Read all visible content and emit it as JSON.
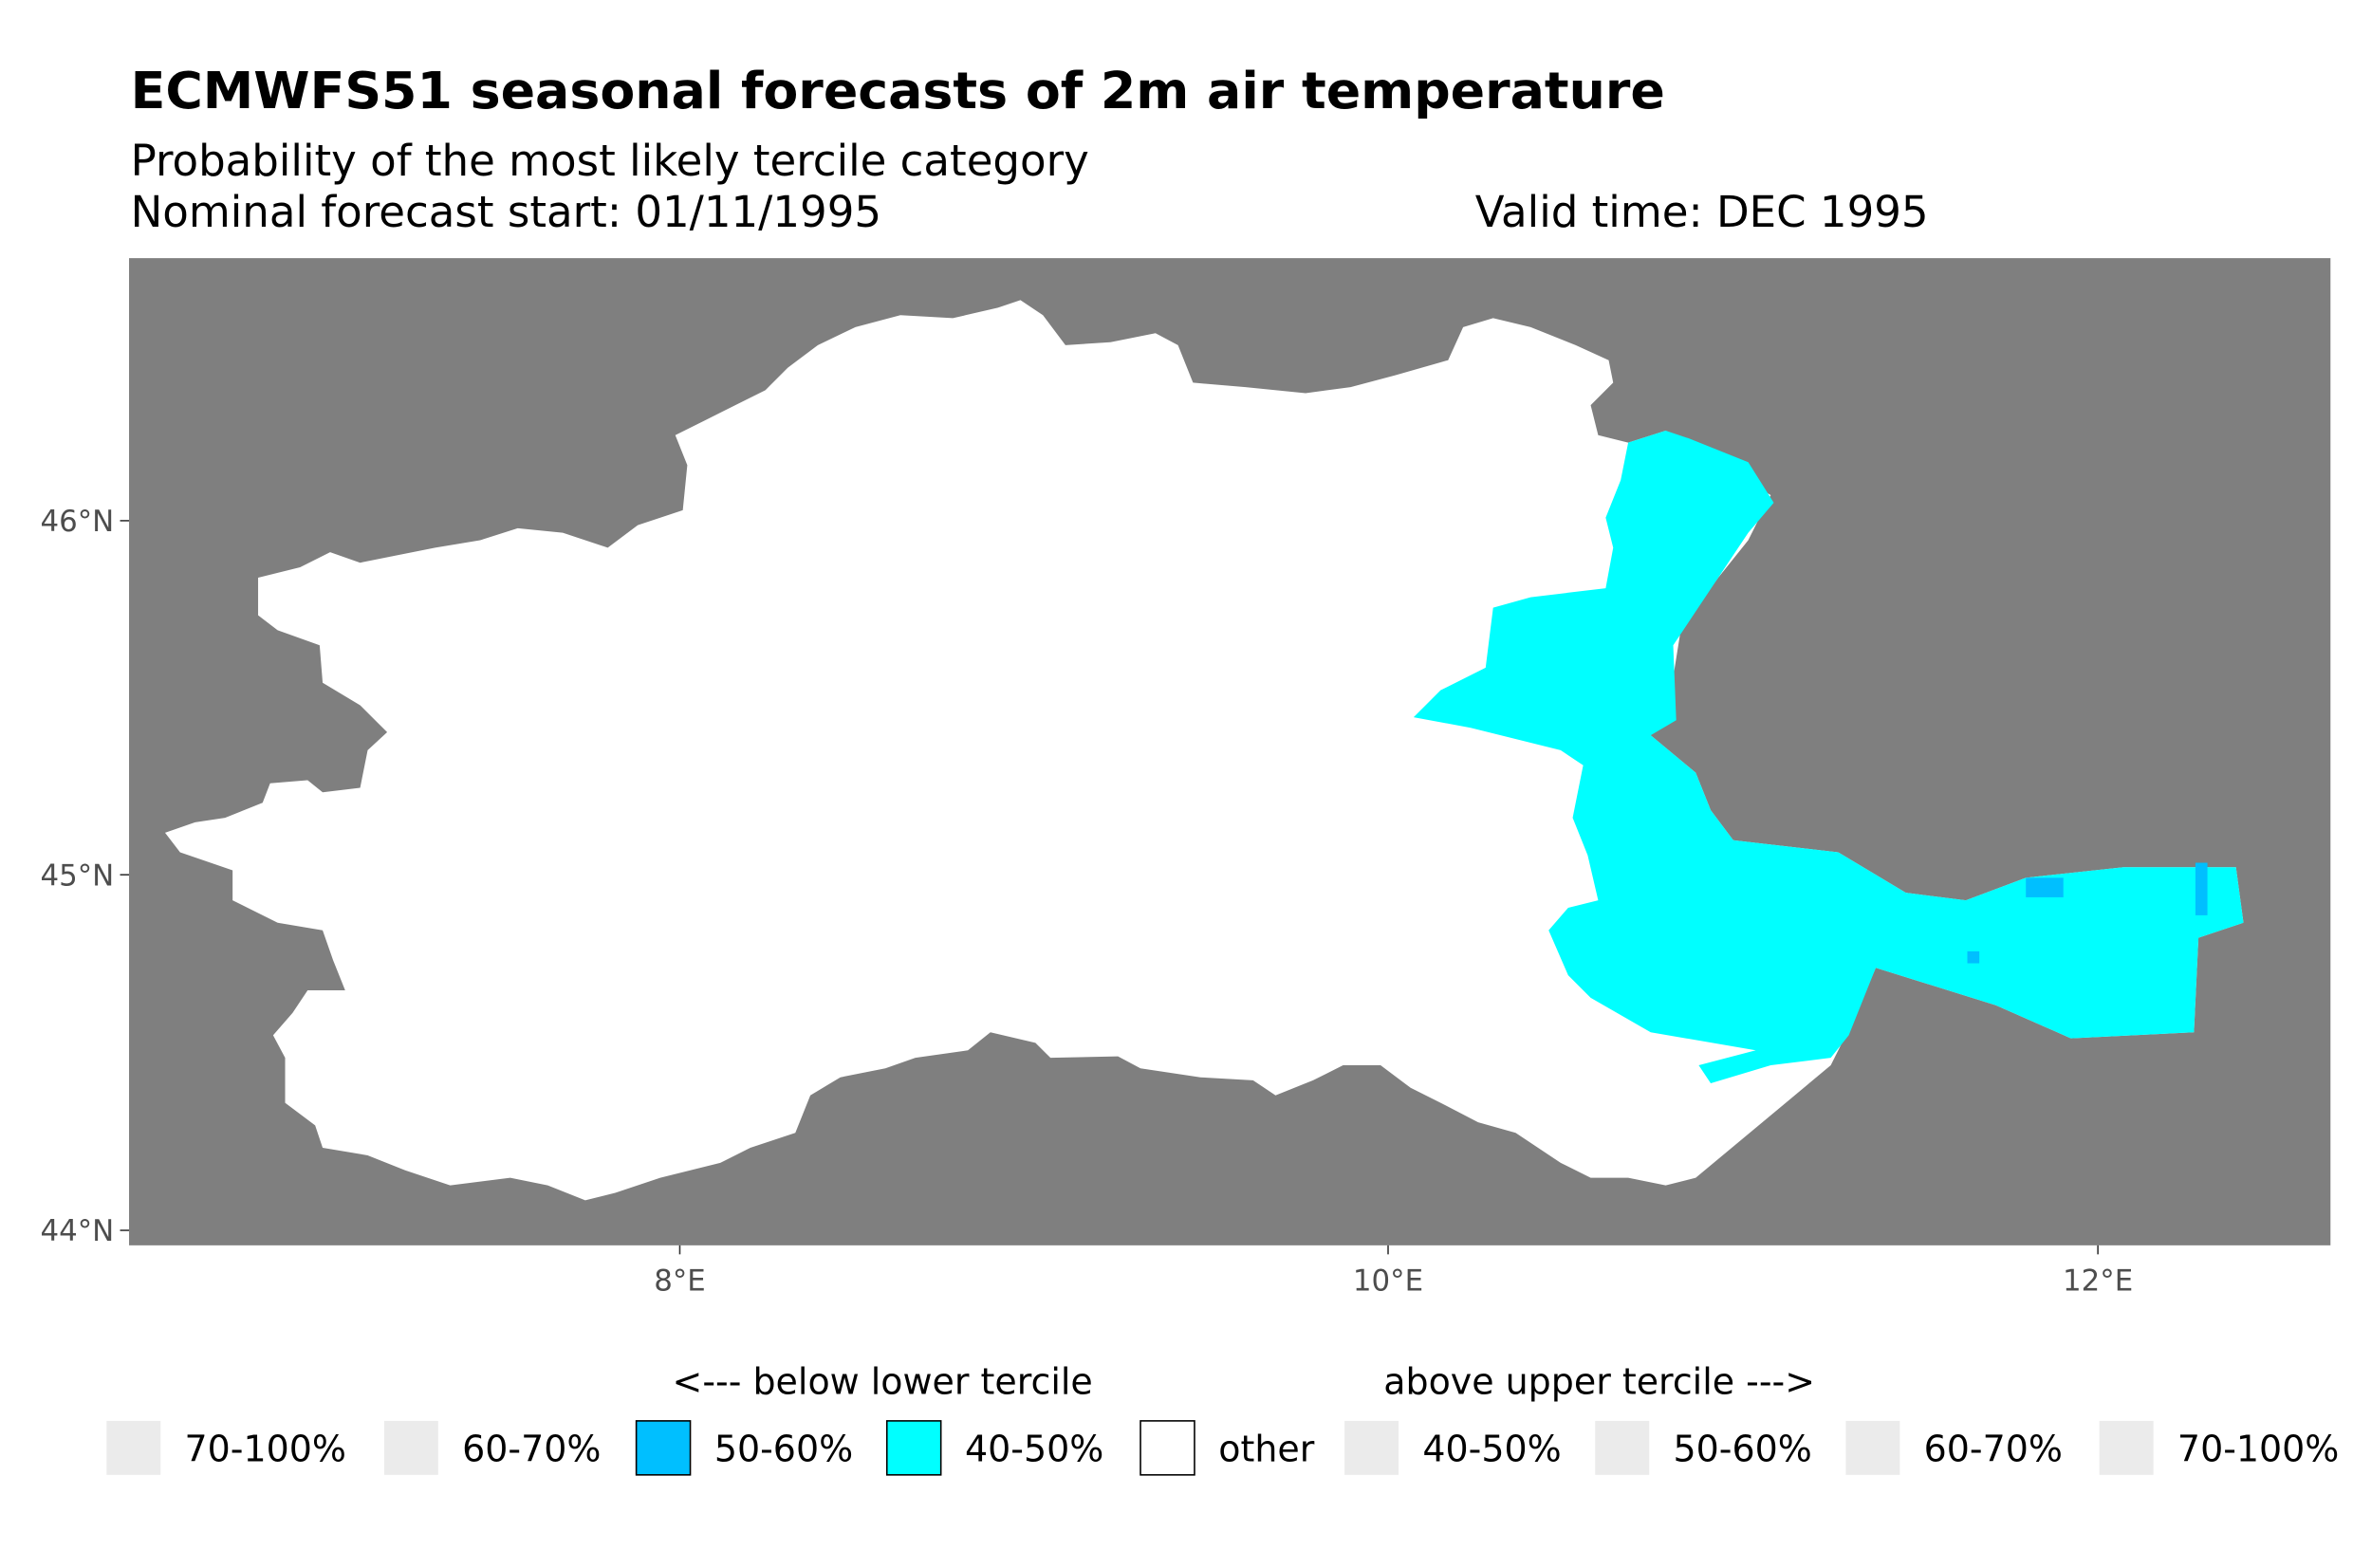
{
  "title": "ECMWFS51 seasonal forecasts of 2m air temperature",
  "subtitle": "Probability of the most likely tercile category",
  "forecast_start": "Nominal forecast start: 01/11/1995",
  "valid_time": "Valid time: DEC 1995",
  "colors": {
    "background": "#7f7f7f",
    "other": "#ffffff",
    "below_40_50": "#00ffff",
    "below_50_60": "#00bfff",
    "empty_key": "#ebebeb"
  },
  "chart_data": {
    "type": "map",
    "xlim": [
      6.45,
      12.66
    ],
    "ylim": [
      43.96,
      46.74
    ],
    "x_ticks": [
      {
        "value": 8,
        "label": "8°E"
      },
      {
        "value": 10,
        "label": "10°E"
      },
      {
        "value": 12,
        "label": "12°E"
      }
    ],
    "y_ticks": [
      {
        "value": 46,
        "label": "46°N"
      },
      {
        "value": 45,
        "label": "45°N"
      },
      {
        "value": 44,
        "label": "44°N"
      }
    ],
    "legend": {
      "placement": "bottom",
      "below_header": "<--- below lower tercile",
      "above_header": "above upper tercile --->",
      "items": [
        {
          "label": "70-100%",
          "color": "#ebebeb"
        },
        {
          "label": "60-70%",
          "color": "#ebebeb"
        },
        {
          "label": "50-60%",
          "color": "#00bfff"
        },
        {
          "label": "40-50%",
          "color": "#00ffff"
        },
        {
          "label": "other",
          "color": "#ffffff"
        },
        {
          "label": "40-50%",
          "color": "#ebebeb"
        },
        {
          "label": "50-60%",
          "color": "#ebebeb"
        },
        {
          "label": "60-70%",
          "color": "#ebebeb"
        },
        {
          "label": "70-100%",
          "color": "#ebebeb"
        }
      ]
    }
  }
}
